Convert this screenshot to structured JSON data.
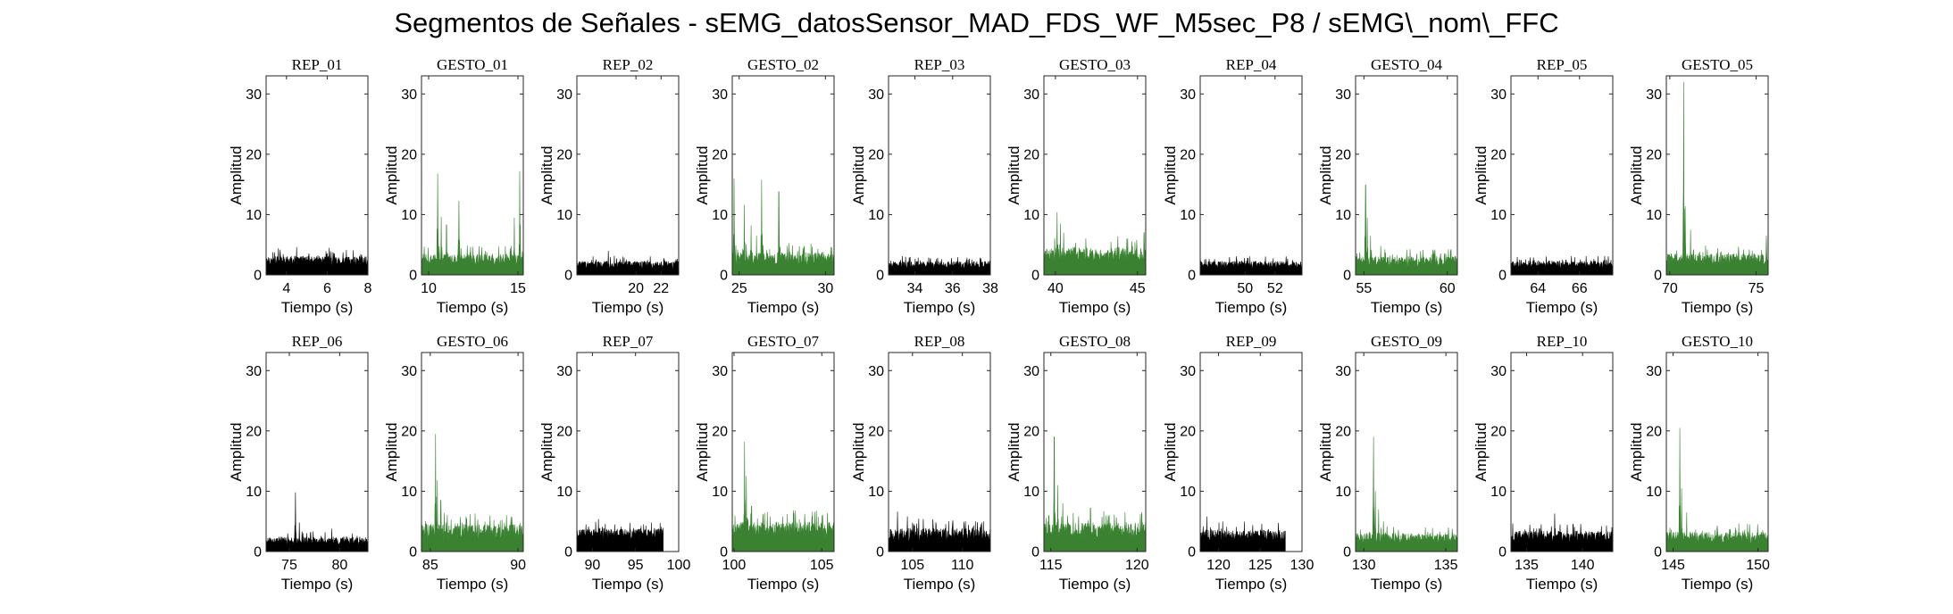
{
  "figure": {
    "title": "Segmentos de Señales - sEMG_datosSensor_MAD_FDS_WF_M5sec_P8 / sEMG\\_nom\\_FFC",
    "colors": {
      "rep": "#000000",
      "gesto": "#3a8232"
    }
  },
  "chart_data": [
    {
      "type": "area",
      "title": "REP_01",
      "xlabel": "Tiempo (s)",
      "ylabel": "Amplitud",
      "xlim": [
        3,
        8
      ],
      "ylim": [
        0,
        33
      ],
      "xticks": [
        4,
        6,
        8
      ],
      "yticks": [
        0,
        10,
        20,
        30
      ],
      "series": [
        {
          "color": "rep",
          "baseline": 1.5,
          "noise": 2.0,
          "spikes": [
            [
              3.6,
              4.4
            ],
            [
              4.5,
              4.6
            ],
            [
              6.1,
              4.5
            ]
          ]
        }
      ]
    },
    {
      "type": "area",
      "title": "GESTO_01",
      "xlabel": "Tiempo (s)",
      "ylabel": "Amplitud",
      "xlim": [
        9.6,
        15.3
      ],
      "ylim": [
        0,
        33
      ],
      "xticks": [
        10,
        15
      ],
      "yticks": [
        0,
        10,
        20,
        30
      ],
      "series": [
        {
          "color": "gesto",
          "baseline": 1.5,
          "noise": 2.5,
          "spikes": [
            [
              10.5,
              16.8
            ],
            [
              10.7,
              9.6
            ],
            [
              11.7,
              12.3
            ],
            [
              15.1,
              17.2
            ],
            [
              14.8,
              9.5
            ],
            [
              11.0,
              8.3
            ]
          ]
        }
      ]
    },
    {
      "type": "area",
      "title": "REP_02",
      "xlabel": "Tiempo (s)",
      "ylabel": "Amplitud",
      "xlim": [
        15.3,
        23.4
      ],
      "ylim": [
        0,
        33
      ],
      "xticks": [
        20,
        22
      ],
      "yticks": [
        0,
        10,
        20,
        30
      ],
      "series": [
        {
          "color": "rep",
          "baseline": 1.0,
          "noise": 1.6,
          "spikes": [
            [
              17.8,
              4.0
            ]
          ]
        }
      ]
    },
    {
      "type": "area",
      "title": "GESTO_02",
      "xlabel": "Tiempo (s)",
      "ylabel": "Amplitud",
      "xlim": [
        24.6,
        30.5
      ],
      "ylim": [
        0,
        33
      ],
      "xticks": [
        25,
        30
      ],
      "yticks": [
        0,
        10,
        20,
        30
      ],
      "series": [
        {
          "color": "gesto",
          "baseline": 1.5,
          "noise": 2.8,
          "spikes": [
            [
              24.7,
              16.0
            ],
            [
              25.3,
              11.6
            ],
            [
              26.3,
              15.8
            ],
            [
              27.3,
              13.8
            ],
            [
              25.7,
              8.2
            ],
            [
              26.0,
              6.5
            ]
          ]
        }
      ]
    },
    {
      "type": "area",
      "title": "REP_03",
      "xlabel": "Tiempo (s)",
      "ylabel": "Amplitud",
      "xlim": [
        32.6,
        38
      ],
      "ylim": [
        0,
        33
      ],
      "xticks": [
        34,
        36,
        38
      ],
      "yticks": [
        0,
        10,
        20,
        30
      ],
      "series": [
        {
          "color": "rep",
          "baseline": 1.0,
          "noise": 1.6,
          "spikes": [
            [
              33.7,
              2.9
            ]
          ]
        }
      ]
    },
    {
      "type": "area",
      "title": "GESTO_03",
      "xlabel": "Tiempo (s)",
      "ylabel": "Amplitud",
      "xlim": [
        39.3,
        45.5
      ],
      "ylim": [
        0,
        33
      ],
      "xticks": [
        40,
        45
      ],
      "yticks": [
        0,
        10,
        20,
        30
      ],
      "series": [
        {
          "color": "gesto",
          "baseline": 2.0,
          "noise": 3.2,
          "spikes": [
            [
              40.1,
              10.4
            ],
            [
              40.3,
              8.5
            ],
            [
              40.5,
              7.0
            ],
            [
              43.8,
              6.4
            ],
            [
              45.4,
              7.0
            ]
          ]
        }
      ]
    },
    {
      "type": "area",
      "title": "REP_04",
      "xlabel": "Tiempo (s)",
      "ylabel": "Amplitud",
      "xlim": [
        47,
        53.8
      ],
      "ylim": [
        0,
        33
      ],
      "xticks": [
        50,
        52
      ],
      "yticks": [
        0,
        10,
        20,
        30
      ],
      "series": [
        {
          "color": "rep",
          "baseline": 1.0,
          "noise": 1.6,
          "spikes": [
            [
              50.2,
              2.8
            ]
          ]
        }
      ]
    },
    {
      "type": "area",
      "title": "GESTO_04",
      "xlabel": "Tiempo (s)",
      "ylabel": "Amplitud",
      "xlim": [
        54.5,
        60.6
      ],
      "ylim": [
        0,
        33
      ],
      "xticks": [
        55,
        60
      ],
      "yticks": [
        0,
        10,
        20,
        30
      ],
      "series": [
        {
          "color": "gesto",
          "baseline": 1.2,
          "noise": 2.3,
          "spikes": [
            [
              55.1,
              14.9
            ],
            [
              55.2,
              9.5
            ],
            [
              55.4,
              6.5
            ],
            [
              56.0,
              4.8
            ]
          ]
        }
      ]
    },
    {
      "type": "area",
      "title": "REP_05",
      "xlabel": "Tiempo (s)",
      "ylabel": "Amplitud",
      "xlim": [
        62.7,
        67.6
      ],
      "ylim": [
        0,
        33
      ],
      "xticks": [
        64,
        66
      ],
      "yticks": [
        0,
        10,
        20,
        30
      ],
      "series": [
        {
          "color": "rep",
          "baseline": 1.0,
          "noise": 1.6,
          "spikes": []
        }
      ]
    },
    {
      "type": "area",
      "title": "GESTO_05",
      "xlabel": "Tiempo (s)",
      "ylabel": "Amplitud",
      "xlim": [
        69.8,
        75.7
      ],
      "ylim": [
        0,
        33
      ],
      "xticks": [
        70,
        75
      ],
      "yticks": [
        0,
        10,
        20,
        30
      ],
      "series": [
        {
          "color": "gesto",
          "baseline": 1.5,
          "noise": 2.5,
          "spikes": [
            [
              70.8,
              32.0
            ],
            [
              70.9,
              11.4
            ],
            [
              71.2,
              7.5
            ],
            [
              75.6,
              6.5
            ]
          ]
        }
      ]
    },
    {
      "type": "area",
      "title": "REP_06",
      "xlabel": "Tiempo (s)",
      "ylabel": "Amplitud",
      "xlim": [
        72.7,
        82.8
      ],
      "ylim": [
        0,
        33
      ],
      "xticks": [
        75,
        80
      ],
      "yticks": [
        0,
        10,
        20,
        30
      ],
      "series": [
        {
          "color": "rep",
          "baseline": 1.0,
          "noise": 1.8,
          "spikes": [
            [
              75.6,
              9.8
            ],
            [
              76.0,
              4.8
            ],
            [
              79.2,
              3.8
            ]
          ]
        }
      ]
    },
    {
      "type": "area",
      "title": "GESTO_06",
      "xlabel": "Tiempo (s)",
      "ylabel": "Amplitud",
      "xlim": [
        84.5,
        90.3
      ],
      "ylim": [
        0,
        33
      ],
      "xticks": [
        85,
        90
      ],
      "yticks": [
        0,
        10,
        20,
        30
      ],
      "series": [
        {
          "color": "gesto",
          "baseline": 2.0,
          "noise": 3.2,
          "spikes": [
            [
              85.3,
              19.5
            ],
            [
              85.4,
              11.8
            ],
            [
              85.6,
              8.5
            ],
            [
              85.8,
              6.4
            ],
            [
              89.6,
              5.8
            ]
          ]
        }
      ]
    },
    {
      "type": "area",
      "title": "REP_07",
      "xlabel": "Tiempo (s)",
      "ylabel": "Amplitud",
      "xlim": [
        88.2,
        100
      ],
      "ylim": [
        0,
        33
      ],
      "xticks": [
        90,
        95,
        100
      ],
      "yticks": [
        0,
        10,
        20,
        30
      ],
      "xend": 98.2,
      "series": [
        {
          "color": "rep",
          "baseline": 2.0,
          "noise": 2.2,
          "spikes": [
            [
              90.7,
              5.4
            ],
            [
              91.5,
              4.6
            ]
          ]
        }
      ]
    },
    {
      "type": "area",
      "title": "GESTO_07",
      "xlabel": "Tiempo (s)",
      "ylabel": "Amplitud",
      "xlim": [
        99.9,
        105.7
      ],
      "ylim": [
        0,
        33
      ],
      "xticks": [
        100,
        105
      ],
      "yticks": [
        0,
        10,
        20,
        30
      ],
      "series": [
        {
          "color": "gesto",
          "baseline": 2.0,
          "noise": 3.6,
          "spikes": [
            [
              100.6,
              18.2
            ],
            [
              100.7,
              12.5
            ],
            [
              101.0,
              7.5
            ],
            [
              103.5,
              6.8
            ]
          ]
        }
      ]
    },
    {
      "type": "area",
      "title": "REP_08",
      "xlabel": "Tiempo (s)",
      "ylabel": "Amplitud",
      "xlim": [
        102.6,
        112.8
      ],
      "ylim": [
        0,
        33
      ],
      "xticks": [
        105,
        110
      ],
      "yticks": [
        0,
        10,
        20,
        30
      ],
      "series": [
        {
          "color": "rep",
          "baseline": 1.5,
          "noise": 3.0,
          "spikes": [
            [
              103.5,
              6.6
            ],
            [
              104.5,
              5.8
            ]
          ]
        }
      ]
    },
    {
      "type": "area",
      "title": "GESTO_08",
      "xlabel": "Tiempo (s)",
      "ylabel": "Amplitud",
      "xlim": [
        114.6,
        120.5
      ],
      "ylim": [
        0,
        33
      ],
      "xticks": [
        115,
        120
      ],
      "yticks": [
        0,
        10,
        20,
        30
      ],
      "series": [
        {
          "color": "gesto",
          "baseline": 2.0,
          "noise": 3.6,
          "spikes": [
            [
              115.2,
              19.0
            ],
            [
              115.4,
              11.0
            ],
            [
              115.7,
              8.0
            ],
            [
              117.3,
              7.2
            ]
          ]
        }
      ]
    },
    {
      "type": "area",
      "title": "REP_09",
      "xlabel": "Tiempo (s)",
      "ylabel": "Amplitud",
      "xlim": [
        117.8,
        130
      ],
      "ylim": [
        0,
        33
      ],
      "xticks": [
        120,
        125,
        130
      ],
      "yticks": [
        0,
        10,
        20,
        30
      ],
      "xend": 128,
      "series": [
        {
          "color": "rep",
          "baseline": 1.5,
          "noise": 2.6,
          "spikes": [
            [
              118.6,
              5.8
            ],
            [
              120.5,
              5.0
            ]
          ]
        }
      ]
    },
    {
      "type": "area",
      "title": "GESTO_09",
      "xlabel": "Tiempo (s)",
      "ylabel": "Amplitud",
      "xlim": [
        129.5,
        135.7
      ],
      "ylim": [
        0,
        33
      ],
      "xticks": [
        130,
        135
      ],
      "yticks": [
        0,
        10,
        20,
        30
      ],
      "series": [
        {
          "color": "gesto",
          "baseline": 1.2,
          "noise": 2.4,
          "spikes": [
            [
              130.6,
              19.0
            ],
            [
              130.7,
              10.0
            ],
            [
              130.9,
              7.0
            ],
            [
              131.2,
              5.0
            ]
          ]
        }
      ]
    },
    {
      "type": "area",
      "title": "REP_10",
      "xlabel": "Tiempo (s)",
      "ylabel": "Amplitud",
      "xlim": [
        133.6,
        142.7
      ],
      "ylim": [
        0,
        33
      ],
      "xticks": [
        135,
        140
      ],
      "yticks": [
        0,
        10,
        20,
        30
      ],
      "series": [
        {
          "color": "rep",
          "baseline": 1.5,
          "noise": 2.4,
          "spikes": [
            [
              137.5,
              6.3
            ],
            [
              138.0,
              4.5
            ]
          ]
        }
      ]
    },
    {
      "type": "area",
      "title": "GESTO_10",
      "xlabel": "Tiempo (s)",
      "ylabel": "Amplitud",
      "xlim": [
        144.6,
        150.6
      ],
      "ylim": [
        0,
        33
      ],
      "xticks": [
        145,
        150
      ],
      "yticks": [
        0,
        10,
        20,
        30
      ],
      "series": [
        {
          "color": "gesto",
          "baseline": 1.2,
          "noise": 2.6,
          "spikes": [
            [
              145.4,
              20.5
            ],
            [
              145.5,
              10.5
            ],
            [
              145.8,
              6.5
            ],
            [
              149.5,
              4.5
            ]
          ]
        }
      ]
    }
  ]
}
